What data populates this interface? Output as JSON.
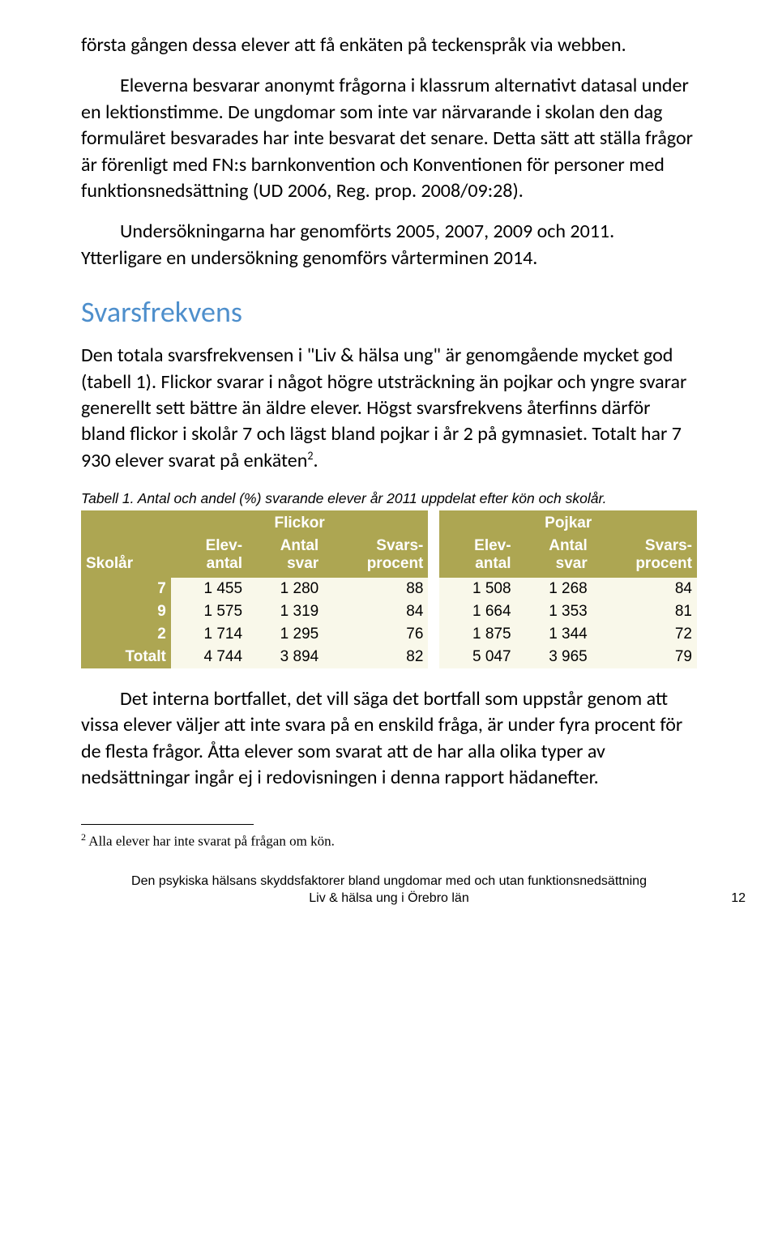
{
  "colors": {
    "heading": "#4e8fcc",
    "table_header_bg": "#ada652",
    "table_header_fg": "#ffffff",
    "table_cell_bg": "#f9f8ea",
    "text": "#000000"
  },
  "para1": "första gången dessa elever att få enkäten på teckenspråk via webben.",
  "para2": "Eleverna besvarar anonymt frågorna i klassrum alternativt datasal under en lektionstimme. De ungdomar som inte var närvarande i skolan den dag formuläret besvarades har inte besvarat det senare. Detta sätt att ställa frågor är förenligt med FN:s barnkonvention och Konventionen för personer med funktionsnedsättning (UD 2006, Reg. prop. 2008/09:28).",
  "para3": "Undersökningarna har genomförts 2005, 2007, 2009 och 2011. Ytterligare en undersökning genomförs vårterminen 2014.",
  "heading": "Svarsfrekvens",
  "para4_a": "Den totala svarsfrekvensen i \"Liv & hälsa ung\" är genomgående mycket god (tabell 1). Flickor svarar i något högre utsträckning än pojkar och yngre svarar generellt sett bättre än äldre elever. Högst svarsfrekvens återfinns därför bland flickor i skolår 7 och lägst bland pojkar i år 2 på gymnasiet. Totalt har 7 930 elever svarat på enkäten",
  "para4_sup": "2",
  "para4_b": ".",
  "table_caption": "Tabell 1. Antal och andel (%) svarande elever år 2011 uppdelat efter kön och skolår.",
  "table": {
    "group_headers": [
      "Flickor",
      "Pojkar"
    ],
    "row_label": "Skolår",
    "col_headers": [
      {
        "l1": "Elev-",
        "l2": "antal"
      },
      {
        "l1": "Antal",
        "l2": "svar"
      },
      {
        "l1": "Svars-",
        "l2": "procent"
      }
    ],
    "rows": [
      {
        "label": "7",
        "f": [
          "1 455",
          "1 280",
          "88"
        ],
        "p": [
          "1 508",
          "1 268",
          "84"
        ]
      },
      {
        "label": "9",
        "f": [
          "1 575",
          "1 319",
          "84"
        ],
        "p": [
          "1 664",
          "1 353",
          "81"
        ]
      },
      {
        "label": "2",
        "f": [
          "1 714",
          "1 295",
          "76"
        ],
        "p": [
          "1 875",
          "1 344",
          "72"
        ]
      },
      {
        "label": "Totalt",
        "f": [
          "4 744",
          "3 894",
          "82"
        ],
        "p": [
          "5 047",
          "3 965",
          "79"
        ]
      }
    ]
  },
  "para5": "Det interna bortfallet, det vill säga det bortfall som uppstår genom att vissa elever väljer att inte svara på en enskild fråga, är under fyra procent för de flesta frågor. Åtta elever som svarat att de har alla olika typer av nedsättningar ingår ej i redovisningen i denna rapport hädanefter.",
  "footnote_marker": "2",
  "footnote_text": " Alla elever har inte svarat på frågan om kön.",
  "footer_line1": "Den psykiska hälsans skyddsfaktorer bland ungdomar med och utan funktionsnedsättning",
  "footer_line2": "Liv & hälsa ung i Örebro län",
  "page_number": "12"
}
